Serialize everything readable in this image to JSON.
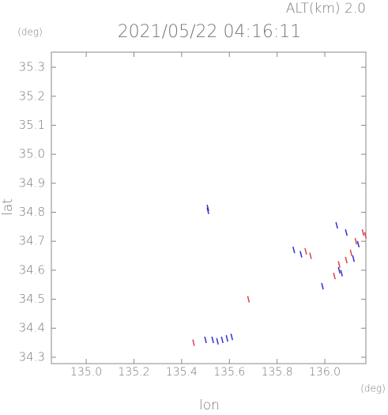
{
  "chart_data": {
    "type": "scatter",
    "title": "2021/05/22 04:16:11",
    "subtitle": "ALT(km) 2.0",
    "x_label": "lon",
    "y_label": "lat",
    "x_unit": "(deg)",
    "y_unit": "(deg)",
    "xlim": [
      134.854,
      136.172
    ],
    "ylim": [
      34.278,
      35.352
    ],
    "xticks": [
      {
        "value": 135,
        "label": "135.0"
      },
      135.2,
      135.4,
      135.6,
      135.8,
      {
        "value": 136,
        "label": "136.0"
      }
    ],
    "yticks": [
      34.3,
      34.4,
      34.5,
      34.6,
      34.7,
      34.8,
      34.9,
      {
        "value": 35,
        "label": "35.0"
      },
      35.1,
      35.2,
      35.3
    ],
    "series": [
      {
        "color": "#3030d0",
        "x": [
          135.51,
          135.51,
          135.5,
          135.53,
          135.55,
          135.57,
          135.59,
          135.61,
          135.87,
          135.9,
          135.99,
          136.05,
          136.09,
          136.06,
          136.07,
          136.12,
          136.14
        ],
        "y": [
          34.815,
          34.805,
          34.36,
          34.36,
          34.355,
          34.36,
          34.365,
          34.37,
          34.67,
          34.655,
          34.545,
          34.755,
          34.73,
          34.6,
          34.59,
          34.64,
          34.69
        ]
      },
      {
        "color": "#e04050",
        "x": [
          135.45,
          135.68,
          135.92,
          135.94,
          136.04,
          136.06,
          136.09,
          136.11,
          136.13,
          136.16,
          136.17
        ],
        "y": [
          34.35,
          34.5,
          34.665,
          34.65,
          34.58,
          34.62,
          34.635,
          34.66,
          34.7,
          34.73,
          34.72
        ]
      }
    ]
  }
}
